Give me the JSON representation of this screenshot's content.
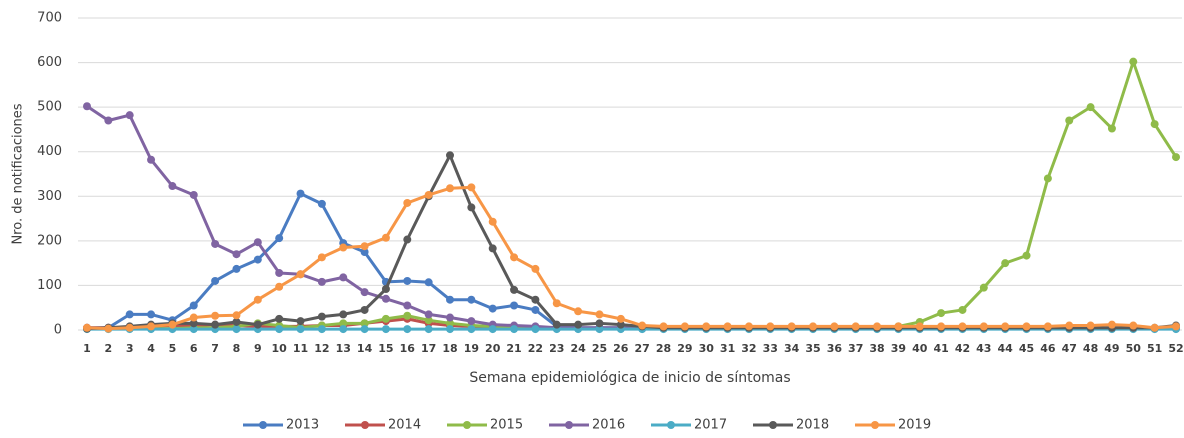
{
  "chart_data": {
    "type": "line",
    "y_label": "Nro. de notificaciones",
    "x_label": "Semana epidemiológica de inicio de síntomas",
    "categories": [
      "1",
      "2",
      "3",
      "4",
      "5",
      "6",
      "7",
      "8",
      "9",
      "10",
      "11",
      "12",
      "13",
      "14",
      "15",
      "16",
      "17",
      "18",
      "19",
      "20",
      "21",
      "22",
      "23",
      "24",
      "25",
      "26",
      "27",
      "28",
      "29",
      "30",
      "31",
      "32",
      "33",
      "34",
      "35",
      "36",
      "37",
      "38",
      "39",
      "40",
      "41",
      "42",
      "43",
      "44",
      "45",
      "46",
      "47",
      "48",
      "49",
      "50",
      "51",
      "52"
    ],
    "ylim": [
      0,
      700
    ],
    "yticks": [
      0,
      100,
      200,
      300,
      400,
      500,
      600,
      700
    ],
    "grid": true,
    "legend": "bottom",
    "series": [
      {
        "name": "2013",
        "color": "#4a7cc2",
        "values": [
          5,
          5,
          35,
          35,
          22,
          55,
          110,
          137,
          158,
          206,
          306,
          283,
          195,
          175,
          108,
          110,
          107,
          68,
          68,
          48,
          55,
          45,
          8,
          5,
          5,
          5,
          3,
          3,
          3,
          3,
          3,
          3,
          3,
          3,
          3,
          3,
          3,
          3,
          3,
          3,
          3,
          3,
          3,
          3,
          3,
          3,
          3,
          3,
          3,
          3,
          3,
          5
        ]
      },
      {
        "name": "2014",
        "color": "#c0504d",
        "values": [
          5,
          5,
          5,
          8,
          10,
          10,
          12,
          10,
          8,
          8,
          8,
          10,
          10,
          15,
          20,
          25,
          15,
          10,
          8,
          5,
          5,
          5,
          3,
          3,
          3,
          3,
          3,
          3,
          3,
          3,
          3,
          3,
          3,
          3,
          3,
          3,
          3,
          3,
          3,
          3,
          3,
          3,
          3,
          3,
          3,
          3,
          3,
          3,
          3,
          3,
          3,
          3
        ]
      },
      {
        "name": "2015",
        "color": "#8fbb49",
        "values": [
          3,
          3,
          3,
          3,
          3,
          5,
          5,
          8,
          15,
          10,
          5,
          10,
          15,
          15,
          25,
          32,
          22,
          15,
          10,
          8,
          5,
          5,
          3,
          3,
          3,
          3,
          3,
          3,
          3,
          3,
          3,
          3,
          3,
          3,
          3,
          3,
          3,
          3,
          8,
          18,
          38,
          45,
          95,
          150,
          167,
          340,
          470,
          500,
          452,
          602,
          462,
          388
        ]
      },
      {
        "name": "2016",
        "color": "#8064a2",
        "values": [
          502,
          470,
          482,
          382,
          323,
          303,
          193,
          170,
          197,
          128,
          125,
          108,
          118,
          85,
          70,
          55,
          35,
          28,
          20,
          12,
          10,
          8,
          5,
          5,
          5,
          5,
          3,
          3,
          3,
          3,
          3,
          3,
          3,
          3,
          3,
          3,
          3,
          3,
          3,
          3,
          3,
          3,
          3,
          3,
          3,
          3,
          3,
          3,
          3,
          3,
          3,
          5
        ]
      },
      {
        "name": "2017",
        "color": "#4bacc6",
        "values": [
          2,
          2,
          2,
          2,
          2,
          2,
          2,
          2,
          2,
          2,
          2,
          2,
          2,
          2,
          2,
          2,
          2,
          2,
          2,
          2,
          2,
          2,
          2,
          2,
          2,
          2,
          2,
          2,
          2,
          2,
          2,
          2,
          2,
          2,
          2,
          2,
          2,
          2,
          2,
          2,
          2,
          2,
          2,
          2,
          2,
          2,
          2,
          2,
          2,
          2,
          2,
          2
        ]
      },
      {
        "name": "2018",
        "color": "#595959",
        "values": [
          3,
          5,
          8,
          12,
          15,
          15,
          12,
          18,
          12,
          25,
          20,
          30,
          35,
          45,
          92,
          203,
          300,
          392,
          275,
          183,
          90,
          68,
          12,
          12,
          15,
          12,
          8,
          5,
          5,
          5,
          5,
          5,
          5,
          5,
          5,
          5,
          5,
          5,
          5,
          5,
          5,
          5,
          5,
          5,
          5,
          5,
          5,
          5,
          5,
          5,
          5,
          10
        ]
      },
      {
        "name": "2019",
        "color": "#f79646",
        "values": [
          5,
          3,
          5,
          8,
          12,
          28,
          32,
          33,
          68,
          97,
          125,
          163,
          185,
          188,
          207,
          285,
          303,
          318,
          320,
          243,
          163,
          137,
          60,
          42,
          35,
          25,
          10,
          8,
          8,
          8,
          8,
          8,
          8,
          8,
          8,
          8,
          8,
          8,
          8,
          8,
          8,
          8,
          8,
          8,
          8,
          8,
          10,
          10,
          12,
          10,
          5,
          8
        ]
      }
    ]
  }
}
